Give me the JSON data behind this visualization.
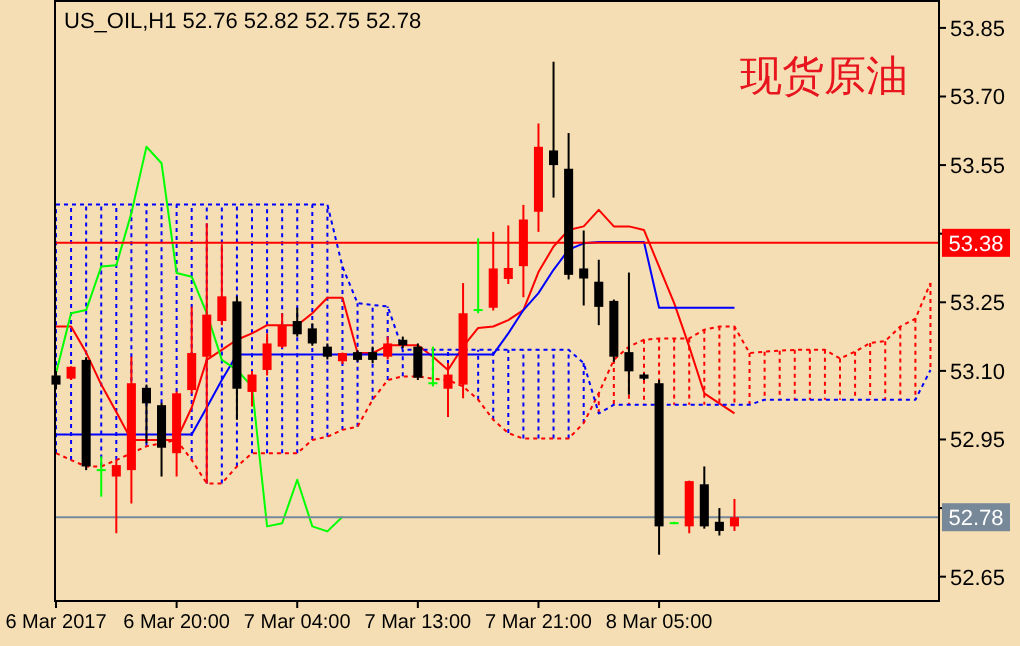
{
  "chart_data": {
    "type": "candlestick",
    "title": "US_OIL,H1  52.76 52.82 52.75 52.78",
    "annotations": [
      "现货原油"
    ],
    "categories": [
      "6 Mar 2017",
      null,
      null,
      null,
      null,
      null,
      null,
      null,
      "6 Mar 20:00",
      null,
      null,
      null,
      null,
      null,
      null,
      null,
      "7 Mar 04:00",
      null,
      null,
      null,
      null,
      null,
      null,
      null,
      "7 Mar 13:00",
      null,
      null,
      null,
      null,
      null,
      null,
      null,
      "7 Mar 21:00",
      null,
      null,
      null,
      null,
      null,
      null,
      null,
      "8 Mar 05:00",
      null,
      null,
      null,
      null,
      null,
      null,
      null,
      null,
      null,
      null,
      null,
      null,
      null,
      null,
      null,
      null,
      null,
      null
    ],
    "ohlc": [
      [
        53.09,
        53.1,
        53.06,
        53.07
      ],
      [
        53.083,
        53.11,
        53.08,
        53.109
      ],
      [
        53.124,
        53.13,
        52.883,
        52.891
      ],
      [
        52.883,
        52.913,
        52.825,
        52.883
      ],
      [
        52.869,
        52.905,
        52.745,
        52.894
      ],
      [
        52.883,
        53.131,
        52.81,
        53.073
      ],
      [
        53.063,
        53.07,
        52.942,
        53.029
      ],
      [
        53.025,
        53.03,
        52.869,
        52.932
      ],
      [
        52.92,
        53.055,
        52.869,
        53.051
      ],
      [
        53.058,
        53.24,
        53.05,
        53.139
      ],
      [
        53.131,
        53.423,
        52.854,
        53.223
      ],
      [
        53.209,
        53.377,
        53.2,
        53.263
      ],
      [
        53.252,
        53.263,
        52.993,
        53.061
      ],
      [
        53.054,
        53.1,
        53.022,
        53.092
      ],
      [
        53.102,
        53.182,
        53.09,
        53.16
      ],
      [
        53.153,
        53.226,
        53.15,
        53.2
      ],
      [
        53.209,
        53.238,
        53.175,
        53.18
      ],
      [
        53.193,
        53.204,
        53.155,
        53.16
      ],
      [
        53.153,
        53.16,
        53.125,
        53.131
      ],
      [
        53.121,
        53.14,
        53.115,
        53.139
      ],
      [
        53.141,
        53.145,
        53.12,
        53.124
      ],
      [
        53.141,
        53.153,
        53.117,
        53.124
      ],
      [
        53.131,
        53.175,
        53.125,
        53.16
      ],
      [
        53.168,
        53.175,
        53.15,
        53.156
      ],
      [
        53.153,
        53.16,
        53.08,
        53.085
      ],
      [
        53.073,
        53.153,
        53.066,
        53.073
      ],
      [
        53.061,
        53.117,
        52.999,
        53.092
      ],
      [
        53.07,
        53.292,
        53.04,
        53.226
      ],
      [
        53.233,
        53.39,
        53.226,
        53.233
      ],
      [
        53.238,
        53.404,
        53.232,
        53.324
      ],
      [
        53.301,
        53.418,
        53.29,
        53.325
      ],
      [
        53.329,
        53.463,
        53.261,
        53.431
      ],
      [
        53.448,
        53.641,
        53.404,
        53.59
      ],
      [
        53.582,
        53.776,
        53.479,
        53.55
      ],
      [
        53.542,
        53.62,
        53.3,
        53.31
      ],
      [
        53.324,
        53.407,
        53.243,
        53.302
      ],
      [
        53.295,
        53.343,
        53.2,
        53.24
      ],
      [
        53.253,
        53.256,
        53.12,
        53.131
      ],
      [
        53.141,
        53.315,
        53.048,
        53.099
      ],
      [
        53.092,
        53.095,
        53.08,
        53.083
      ],
      [
        53.073,
        53.08,
        52.698,
        52.76
      ],
      [
        52.767,
        52.77,
        52.765,
        52.767
      ],
      [
        52.76,
        52.86,
        52.745,
        52.859
      ],
      [
        52.852,
        52.891,
        52.755,
        52.76
      ],
      [
        52.77,
        52.8,
        52.74,
        52.75
      ],
      [
        52.76,
        52.82,
        52.75,
        52.78
      ],
      null,
      null,
      null,
      null,
      null,
      null,
      null,
      null,
      null,
      null,
      null,
      null,
      null
    ],
    "colors": [
      "#000000",
      "#ff0000",
      "#000000",
      "#00ff00",
      "#ff0000",
      "#ff0000",
      "#000000",
      "#000000",
      "#ff0000",
      "#ff0000",
      "#ff0000",
      "#ff0000",
      "#000000",
      "#ff0000",
      "#ff0000",
      "#ff0000",
      "#000000",
      "#000000",
      "#000000",
      "#ff0000",
      "#000000",
      "#000000",
      "#ff0000",
      "#000000",
      "#000000",
      "#00ff00",
      "#ff0000",
      "#ff0000",
      "#00ff00",
      "#ff0000",
      "#ff0000",
      "#ff0000",
      "#ff0000",
      "#000000",
      "#000000",
      "#000000",
      "#000000",
      "#000000",
      "#000000",
      "#000000",
      "#000000",
      "#00ff00",
      "#ff0000",
      "#000000",
      "#000000",
      "#ff0000",
      null,
      null,
      null,
      null,
      null,
      null,
      null,
      null,
      null,
      null,
      null,
      null,
      null
    ],
    "series": [
      {
        "type": "line",
        "color": "#ff0000",
        "line_style": "solid",
        "values": [
          53.197,
          53.197,
          53.14,
          53.07,
          53.01,
          52.949,
          52.949,
          52.949,
          52.949,
          53.02,
          53.124,
          53.146,
          53.168,
          53.182,
          53.2,
          53.2,
          53.2,
          53.226,
          53.26,
          53.26,
          53.139,
          53.139,
          53.156,
          53.156,
          53.156,
          53.131,
          53.102,
          53.153,
          53.194,
          53.197,
          53.211,
          53.233,
          53.316,
          53.372,
          53.408,
          53.416,
          53.452,
          53.416,
          53.416,
          53.408,
          53.328,
          53.248,
          53.153,
          53.051,
          53.029,
          53.007,
          null,
          null,
          null,
          null,
          null,
          null,
          null,
          null,
          null,
          null,
          null,
          null,
          null
        ]
      },
      {
        "type": "line",
        "color": "#0000ff",
        "line_style": "solid",
        "values": [
          52.961,
          52.961,
          52.961,
          52.961,
          52.961,
          52.961,
          52.961,
          52.961,
          52.961,
          52.961,
          53.02,
          53.08,
          53.136,
          53.136,
          53.136,
          53.136,
          53.136,
          53.136,
          53.136,
          53.136,
          53.136,
          53.136,
          53.136,
          53.136,
          53.136,
          53.136,
          53.136,
          53.136,
          53.136,
          53.136,
          53.182,
          53.233,
          53.27,
          53.321,
          53.365,
          53.379,
          53.382,
          53.382,
          53.382,
          53.382,
          53.238,
          53.238,
          53.238,
          53.238,
          53.238,
          53.238,
          null,
          null,
          null,
          null,
          null,
          null,
          null,
          null,
          null,
          null,
          null,
          null,
          null
        ]
      },
      {
        "type": "line",
        "color": "#00ff00",
        "line_style": "solid",
        "values": [
          53.095,
          53.226,
          53.233,
          53.328,
          53.331,
          53.445,
          53.59,
          53.554,
          53.314,
          53.306,
          53.226,
          53.124,
          53.102,
          53.066,
          52.76,
          52.767,
          52.862,
          52.76,
          52.749,
          52.781,
          null,
          null,
          null,
          null,
          null,
          null,
          null,
          null,
          null,
          null,
          null,
          null,
          null,
          null,
          null,
          null,
          null,
          null,
          null,
          null,
          null,
          null,
          null,
          null,
          null,
          null,
          null,
          null,
          null,
          null,
          null,
          null,
          null,
          null,
          null,
          null,
          null,
          null,
          null
        ]
      },
      {
        "type": "line",
        "color": "#ff0000",
        "line_style": "dotted",
        "values": [
          52.92,
          52.905,
          52.891,
          52.891,
          52.905,
          52.92,
          52.935,
          52.942,
          52.949,
          52.905,
          52.854,
          52.854,
          52.891,
          52.92,
          52.92,
          52.92,
          52.92,
          52.949,
          52.956,
          52.971,
          52.978,
          53.037,
          53.08,
          53.088,
          53.088,
          53.083,
          53.08,
          53.066,
          53.037,
          52.993,
          52.964,
          52.952,
          52.952,
          52.952,
          52.952,
          52.986,
          53.051,
          53.124,
          53.153,
          53.168,
          53.171,
          53.171,
          53.171,
          53.19,
          53.197,
          53.197,
          53.139,
          53.142,
          53.144,
          53.146,
          53.146,
          53.146,
          53.127,
          53.142,
          53.161,
          53.165,
          53.197,
          53.214,
          53.292
        ]
      },
      {
        "type": "line",
        "color": "#0000ff",
        "line_style": "dotted",
        "values": [
          53.464,
          53.464,
          53.464,
          53.464,
          53.464,
          53.464,
          53.464,
          53.464,
          53.464,
          53.464,
          53.464,
          53.464,
          53.464,
          53.464,
          53.464,
          53.464,
          53.464,
          53.464,
          53.464,
          53.328,
          53.248,
          53.244,
          53.241,
          53.146,
          53.146,
          53.146,
          53.146,
          53.146,
          53.146,
          53.146,
          53.146,
          53.146,
          53.146,
          53.146,
          53.146,
          53.117,
          53.007,
          53.026,
          53.026,
          53.026,
          53.026,
          53.026,
          53.026,
          53.026,
          53.026,
          53.026,
          53.026,
          53.037,
          53.037,
          53.037,
          53.037,
          53.037,
          53.037,
          53.037,
          53.037,
          53.037,
          53.037,
          53.037,
          53.102
        ]
      }
    ],
    "ylim": [
      52.599,
      53.911
    ],
    "yticks": [
      52.65,
      {
        "value": 52.8,
        "label": null
      },
      52.95,
      {
        "value": 53.1,
        "label": "53.10"
      },
      53.25,
      {
        "value": 53.4,
        "label": null
      },
      53.55,
      {
        "value": 53.7,
        "label": "53.70"
      },
      53.85
    ],
    "ref_lines": [
      {
        "axis": "y",
        "value": 53.38,
        "label": "53.38",
        "color": "#ff0000"
      },
      {
        "axis": "y",
        "value": 52.78,
        "label": "52.78",
        "color": "#778899"
      }
    ]
  }
}
